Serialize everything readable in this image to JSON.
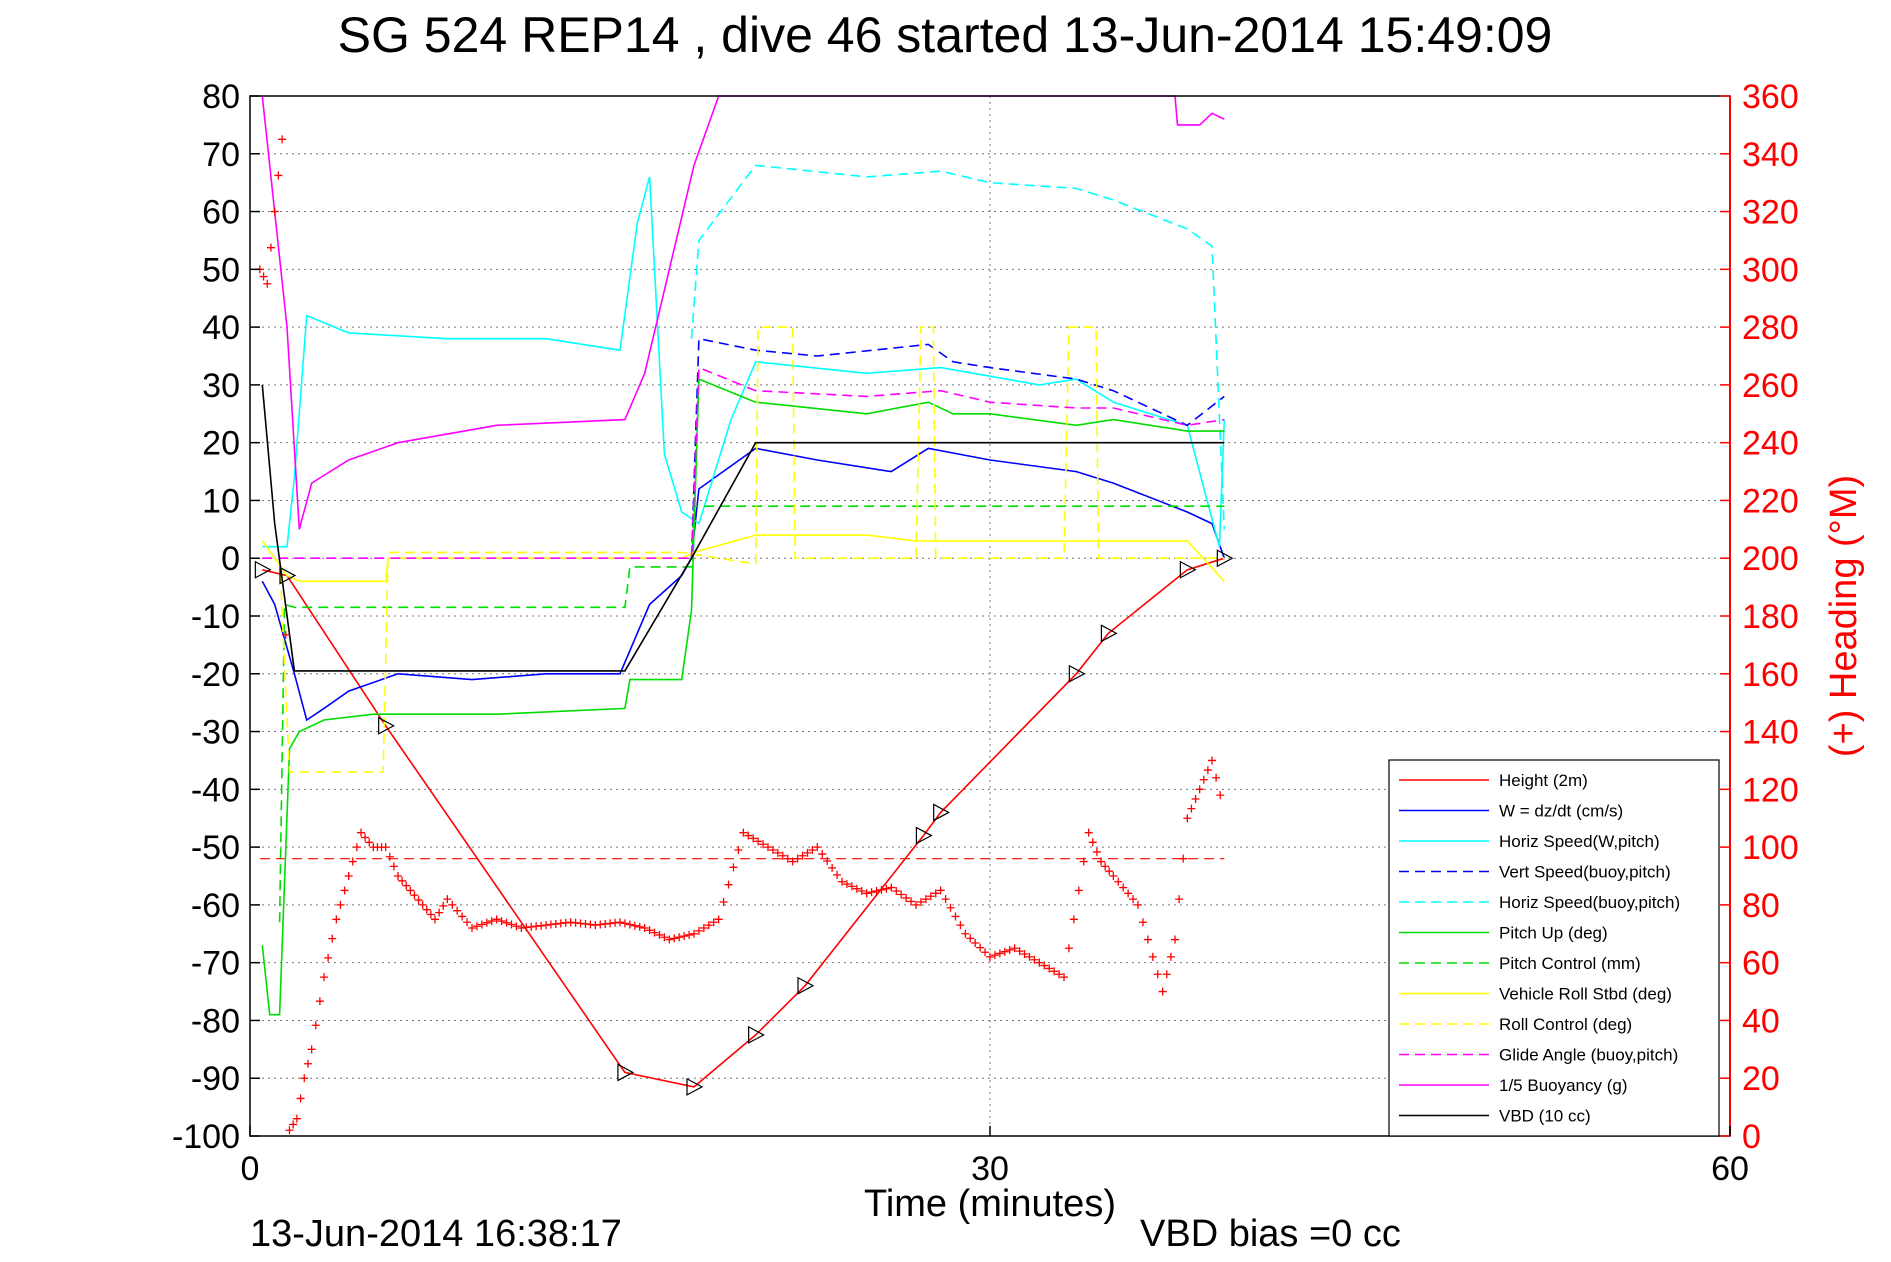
{
  "title": "SG 524   REP14  , dive 46 started 13-Jun-2014 15:49:09",
  "footer_left": "13-Jun-2014 16:38:17",
  "footer_right": "VBD bias =0 cc",
  "xlabel": "Time (minutes)",
  "ylabel_right": "(+) Heading (°M)",
  "colors": {
    "height": "#ff0000",
    "w": "#0000ff",
    "horiz_w": "#00ffff",
    "vert_buoy": "#0000ff",
    "horiz_buoy": "#00ffff",
    "pitch_up": "#00dd00",
    "pitch_control": "#00dd00",
    "roll": "#ffff00",
    "roll_control": "#ffff00",
    "glide": "#ff00ff",
    "buoyancy": "#ff00ff",
    "vbd": "#000000",
    "heading": "#ff0000"
  },
  "chart_data": {
    "type": "line",
    "x_range": [
      0,
      60
    ],
    "y_left_range": [
      -100,
      80
    ],
    "y_right_range": [
      0,
      360
    ],
    "x_ticks": [
      0,
      30,
      60
    ],
    "y_left_ticks": [
      80,
      70,
      60,
      50,
      40,
      30,
      20,
      10,
      0,
      -10,
      -20,
      -30,
      -40,
      -50,
      -60,
      -70,
      -80,
      -90,
      -100
    ],
    "y_right_ticks": [
      360,
      340,
      320,
      300,
      280,
      260,
      240,
      220,
      200,
      180,
      160,
      140,
      120,
      100,
      80,
      60,
      40,
      20,
      0
    ],
    "grid": "dotted",
    "legend_position": "bottom-right",
    "series": [
      {
        "name": "Height (2m)",
        "key": "height",
        "style": "solid",
        "x": [
          0.5,
          1.5,
          5.5,
          15.2,
          18.0,
          20.5,
          22.5,
          27.3,
          28.0,
          33.5,
          34.8,
          38.0,
          39.5
        ],
        "y": [
          -2,
          -3,
          -29,
          -89,
          -91.5,
          -82.5,
          -74,
          -48,
          -44,
          -20,
          -13,
          -2,
          0
        ]
      },
      {
        "name": "W = dz/dt (cm/s)",
        "key": "w",
        "style": "solid",
        "x": [
          0.5,
          1.0,
          1.8,
          2.3,
          3.0,
          4.0,
          6.0,
          9.0,
          12.0,
          15.0,
          16.2,
          17.5,
          17.9,
          18.2,
          20.5,
          23.0,
          26.0,
          27.5,
          30.0,
          33.5,
          35.0,
          38.0,
          39.0,
          39.5
        ],
        "y": [
          -4,
          -8,
          -20,
          -28,
          -26,
          -23,
          -20,
          -21,
          -20,
          -20,
          -8,
          -3,
          0,
          12,
          19,
          17,
          15,
          19,
          17,
          15,
          13,
          8,
          6,
          0
        ]
      },
      {
        "name": "Horiz Speed(W,pitch)",
        "key": "horiz_w",
        "style": "solid",
        "x": [
          0.5,
          1.5,
          1.8,
          2.3,
          4.0,
          8.0,
          12.0,
          15.0,
          15.7,
          16.2,
          16.8,
          17.5,
          18.2,
          19.5,
          20.5,
          25.0,
          28.0,
          32.0,
          33.5,
          35.0,
          38.0,
          38.8,
          39.3,
          39.5
        ],
        "y": [
          2,
          2,
          14,
          42,
          39,
          38,
          38,
          36,
          58,
          66,
          18,
          8,
          6,
          24,
          34,
          32,
          33,
          30,
          31,
          27,
          23,
          10,
          2,
          24
        ]
      },
      {
        "name": "Vert Speed(buoy,pitch)",
        "key": "vert_buoy",
        "style": "dashed",
        "x": [
          17.9,
          18.2,
          20.5,
          23.0,
          27.5,
          28.5,
          30.0,
          33.5,
          35.0,
          38.0,
          39.5
        ],
        "y": [
          0,
          38,
          36,
          35,
          37,
          34,
          33,
          31,
          29,
          23,
          28
        ]
      },
      {
        "name": "Horiz Speed(buoy,pitch)",
        "key": "horiz_buoy",
        "style": "dashed",
        "x": [
          17.9,
          18.2,
          20.5,
          25.0,
          28.0,
          30.0,
          33.5,
          35.0,
          38.0,
          39.0,
          39.5
        ],
        "y": [
          38,
          55,
          68,
          66,
          67,
          65,
          64,
          62,
          57,
          54,
          5
        ]
      },
      {
        "name": "Pitch Up (deg)",
        "key": "pitch_up",
        "style": "solid",
        "x": [
          0.5,
          0.8,
          1.2,
          1.6,
          2.0,
          3.0,
          5.0,
          10.0,
          15.2,
          15.4,
          17.5,
          17.9,
          18.2,
          20.5,
          25.0,
          27.5,
          28.5,
          30.0,
          33.5,
          35.0,
          38.0,
          39.5
        ],
        "y": [
          -67,
          -79,
          -79,
          -33,
          -30,
          -28,
          -27,
          -27,
          -26,
          -21,
          -21,
          -9,
          31,
          27,
          25,
          27,
          25,
          25,
          23,
          24,
          22,
          22
        ]
      },
      {
        "name": "Pitch Control (mm)",
        "key": "pitch_control",
        "style": "dashed",
        "x": [
          1.2,
          1.4,
          1.8,
          15.2,
          15.4,
          17.9,
          18.0,
          39.5
        ],
        "y": [
          -63,
          -8,
          -8.5,
          -8.5,
          -1.5,
          -1.5,
          9,
          9
        ]
      },
      {
        "name": "Vehicle Roll Stbd (deg)",
        "key": "roll",
        "style": "solid",
        "x": [
          0.5,
          1.0,
          1.5,
          2.0,
          5.5,
          5.6,
          17.5,
          18.0,
          20.5,
          25.0,
          27.0,
          30.0,
          33.0,
          35.0,
          38.0,
          39.5
        ],
        "y": [
          3,
          0,
          -3,
          -4,
          -4,
          0,
          0,
          1,
          4,
          4,
          3,
          3,
          3,
          3,
          3,
          -4
        ]
      },
      {
        "name": "Roll Control (deg)",
        "key": "roll_control",
        "style": "dashed",
        "x": [
          1.2,
          1.6,
          5.2,
          5.4,
          5.6,
          17.5,
          20.5,
          20.6,
          22.0,
          22.1,
          27.0,
          27.2,
          27.7,
          27.8,
          33.0,
          33.2,
          34.3,
          34.4,
          39.5
        ],
        "y": [
          0,
          -37,
          -37,
          -37,
          1,
          1,
          -1,
          40,
          40,
          0,
          0,
          40,
          40,
          0,
          0,
          40,
          40,
          0,
          0
        ]
      },
      {
        "name": "Glide Angle (buoy,pitch)",
        "key": "glide",
        "style": "dashed",
        "x": [
          0.5,
          17.9,
          18.2,
          20.5,
          25.0,
          28.0,
          30.0,
          33.5,
          35.0,
          38.0,
          39.5
        ],
        "y": [
          0,
          0,
          33,
          29,
          28,
          29,
          27,
          26,
          26,
          23,
          24
        ]
      },
      {
        "name": "1/5 Buoyancy (g)",
        "key": "buoyancy",
        "style": "solid",
        "x": [
          0.5,
          1.5,
          2.0,
          2.5,
          4.0,
          6.0,
          10.0,
          15.2,
          16.0,
          18.0,
          19.0,
          37.5,
          37.6,
          38.5,
          39.0,
          39.5
        ],
        "y": [
          80,
          40,
          5,
          13,
          17,
          20,
          23,
          24,
          32,
          68,
          80,
          80,
          75,
          75,
          77,
          76
        ]
      },
      {
        "name": "VBD (10 cc)",
        "key": "vbd",
        "style": "solid",
        "x": [
          0.5,
          1.0,
          1.8,
          15.2,
          17.9,
          20.5,
          39.5
        ],
        "y": [
          30,
          6,
          -19.5,
          -19.5,
          0,
          20,
          20
        ]
      }
    ],
    "heading_series": {
      "name": "Heading",
      "marker": "+",
      "axis": "right",
      "x": [
        0.4,
        0.7,
        1.0,
        1.3,
        1.6,
        1.9,
        2.2,
        2.5,
        3.0,
        3.5,
        4.0,
        4.5,
        5.0,
        5.5,
        6.0,
        6.5,
        7.0,
        7.5,
        8.0,
        9.0,
        10.0,
        11.0,
        12.0,
        13.0,
        14.0,
        15.0,
        16.0,
        17.0,
        18.0,
        19.0,
        20.0,
        21.0,
        22.0,
        23.0,
        24.0,
        25.0,
        26.0,
        27.0,
        28.0,
        29.0,
        30.0,
        31.0,
        32.0,
        33.0,
        34.0,
        34.5,
        35.0,
        36.0,
        37.0,
        37.5,
        38.0,
        38.5,
        39.0,
        39.5
      ],
      "y": [
        300,
        295,
        320,
        345,
        2,
        6,
        20,
        30,
        55,
        75,
        90,
        105,
        100,
        100,
        90,
        85,
        80,
        75,
        82,
        72,
        75,
        72,
        73,
        74,
        73,
        74,
        72,
        68,
        70,
        75,
        105,
        100,
        95,
        100,
        88,
        84,
        86,
        80,
        85,
        70,
        62,
        65,
        60,
        55,
        105,
        95,
        90,
        80,
        50,
        68,
        110,
        120,
        130,
        112
      ]
    },
    "reference_lines": [
      {
        "axis": "right",
        "value": 96,
        "color": "#ff0000",
        "style": "dashed"
      }
    ]
  }
}
